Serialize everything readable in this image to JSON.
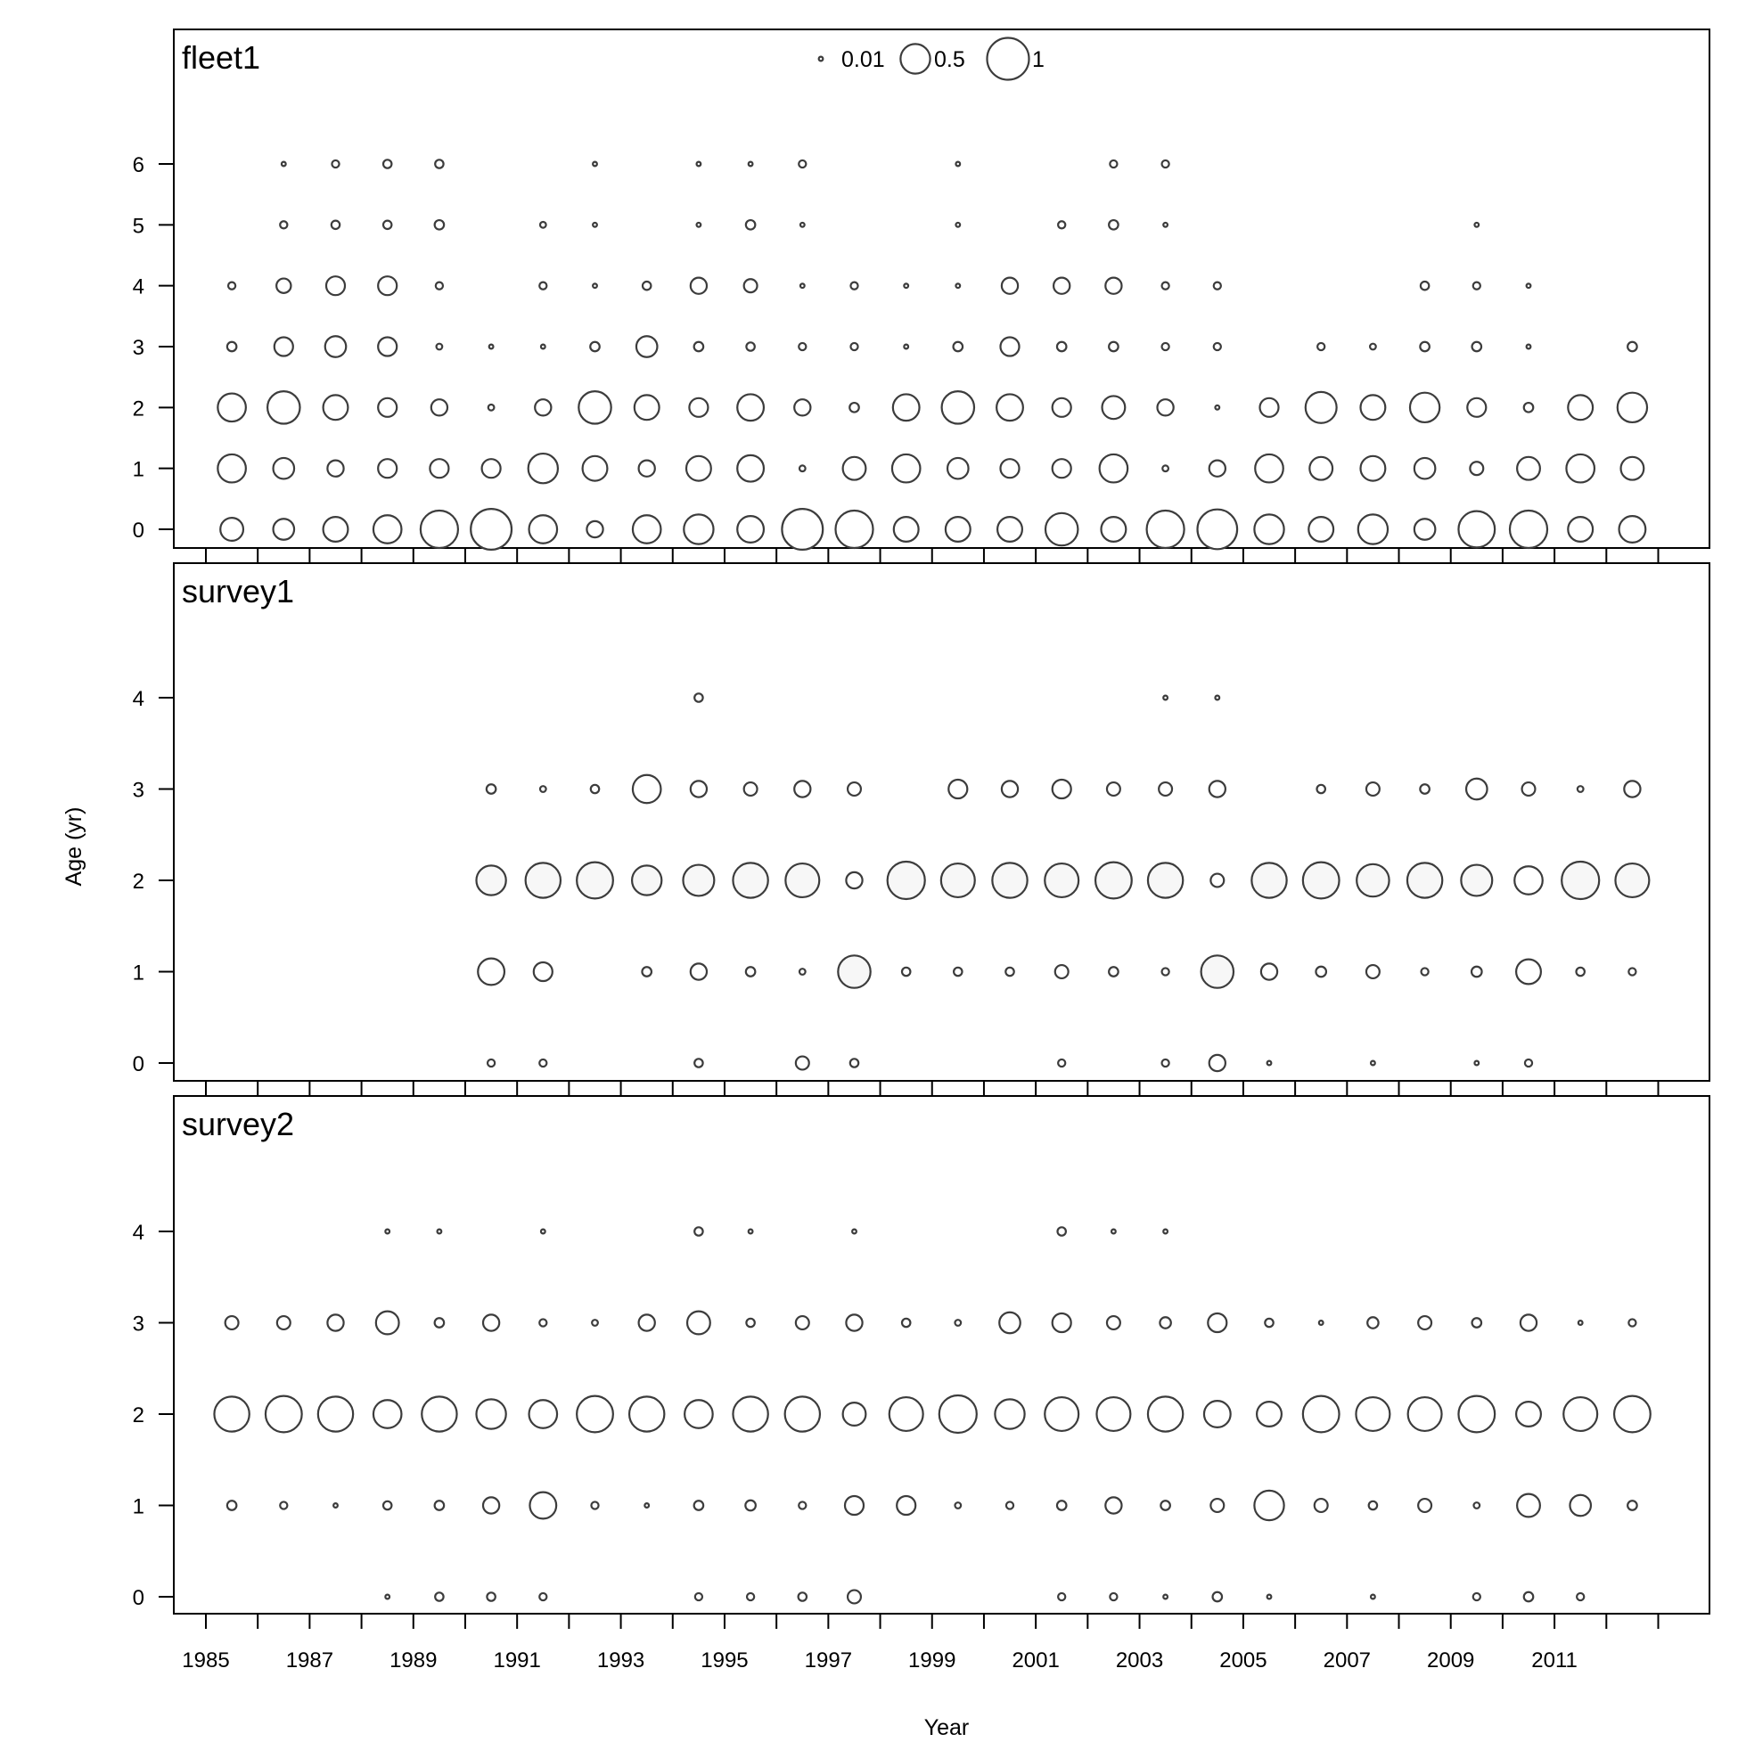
{
  "chart_data": {
    "type": "bubble",
    "xlabel": "Year",
    "ylabel": "Age (yr)",
    "x_tick_labels": [
      1985,
      1987,
      1989,
      1991,
      1993,
      1995,
      1997,
      1999,
      2001,
      2003,
      2005,
      2007,
      2009,
      2011
    ],
    "years": [
      1986,
      1987,
      1988,
      1989,
      1990,
      1991,
      1992,
      1993,
      1994,
      1995,
      1996,
      1997,
      1998,
      1999,
      2000,
      2001,
      2002,
      2003,
      2004,
      2005,
      2006,
      2007,
      2008,
      2009,
      2010,
      2011,
      2012,
      2013
    ],
    "xlim": [
      1984.5,
      2013.5
    ],
    "legend": {
      "entries": [
        {
          "label": "0.01",
          "size": 0.01
        },
        {
          "label": "0.5",
          "size": 0.5
        },
        {
          "label": "1",
          "size": 1
        }
      ],
      "position": "top-center"
    },
    "panels": [
      {
        "name": "fleet1",
        "ages": [
          0,
          1,
          2,
          3,
          4,
          5,
          6
        ],
        "values": {
          "0": [
            0.3,
            0.25,
            0.35,
            0.45,
            0.8,
            0.95,
            0.45,
            0.15,
            0.45,
            0.5,
            0.4,
            0.95,
            0.8,
            0.35,
            0.35,
            0.35,
            0.6,
            0.35,
            0.8,
            0.9,
            0.5,
            0.35,
            0.5,
            0.25,
            0.75,
            0.8,
            0.35,
            0.4
          ],
          "1": [
            0.45,
            0.25,
            0.15,
            0.2,
            0.2,
            0.2,
            0.5,
            0.35,
            0.15,
            0.35,
            0.4,
            0.02,
            0.3,
            0.45,
            0.25,
            0.2,
            0.2,
            0.45,
            0.02,
            0.15,
            0.45,
            0.3,
            0.35,
            0.25,
            0.1,
            0.3,
            0.45,
            0.3
          ],
          "2": [
            0.45,
            0.6,
            0.35,
            0.2,
            0.15,
            0.02,
            0.15,
            0.6,
            0.35,
            0.2,
            0.4,
            0.15,
            0.05,
            0.4,
            0.6,
            0.4,
            0.2,
            0.3,
            0.15,
            0.01,
            0.2,
            0.55,
            0.35,
            0.5,
            0.2,
            0.05,
            0.35,
            0.5
          ],
          "3": [
            0.05,
            0.2,
            0.25,
            0.2,
            0.02,
            0.01,
            0.01,
            0.05,
            0.25,
            0.05,
            0.04,
            0.03,
            0.03,
            0.01,
            0.05,
            0.2,
            0.05,
            0.05,
            0.03,
            0.03,
            0.0,
            0.03,
            0.02,
            0.05,
            0.05,
            0.01,
            0.0,
            0.05
          ],
          "4": [
            0.03,
            0.12,
            0.2,
            0.2,
            0.03,
            0.0,
            0.03,
            0.01,
            0.04,
            0.15,
            0.1,
            0.01,
            0.03,
            0.01,
            0.01,
            0.15,
            0.15,
            0.15,
            0.03,
            0.03,
            0.0,
            0.0,
            0.0,
            0.04,
            0.03,
            0.01,
            0.0,
            0.0
          ],
          "5": [
            0.0,
            0.03,
            0.04,
            0.04,
            0.05,
            0.0,
            0.02,
            0.01,
            0.0,
            0.01,
            0.05,
            0.01,
            0.0,
            0.0,
            0.01,
            0.0,
            0.03,
            0.05,
            0.01,
            0.0,
            0.0,
            0.0,
            0.0,
            0.0,
            0.01,
            0.0,
            0.0,
            0.0
          ],
          "6": [
            0.0,
            0.01,
            0.03,
            0.04,
            0.04,
            0.0,
            0.0,
            0.01,
            0.0,
            0.01,
            0.01,
            0.03,
            0.0,
            0.0,
            0.01,
            0.0,
            0.0,
            0.03,
            0.03,
            0.0,
            0.0,
            0.0,
            0.0,
            0.0,
            0.0,
            0.0,
            0.0,
            0.0
          ]
        }
      },
      {
        "name": "survey1",
        "ages": [
          0,
          1,
          2,
          3,
          4
        ],
        "values": {
          "0": [
            0.0,
            0.0,
            0.0,
            0.0,
            0.0,
            0.03,
            0.03,
            0.0,
            0.0,
            0.04,
            0.0,
            0.1,
            0.04,
            0.0,
            0.0,
            0.0,
            0.03,
            0.0,
            0.03,
            0.15,
            0.01,
            0.0,
            0.01,
            0.0,
            0.01,
            0.03,
            0.0,
            0.0
          ],
          "1": [
            0.0,
            0.0,
            0.0,
            0.0,
            0.0,
            0.4,
            0.2,
            0.0,
            0.05,
            0.15,
            0.05,
            0.02,
            0.6,
            0.04,
            0.04,
            0.04,
            0.1,
            0.05,
            0.03,
            0.6,
            0.15,
            0.06,
            0.1,
            0.03,
            0.06,
            0.35,
            0.04,
            0.03
          ],
          "2": [
            0.0,
            0.0,
            0.0,
            0.0,
            0.0,
            0.5,
            0.7,
            0.75,
            0.5,
            0.55,
            0.7,
            0.65,
            0.15,
            0.8,
            0.65,
            0.7,
            0.65,
            0.75,
            0.7,
            0.1,
            0.7,
            0.75,
            0.6,
            0.7,
            0.55,
            0.45,
            0.8,
            0.65
          ],
          "3": [
            0.0,
            0.0,
            0.0,
            0.0,
            0.0,
            0.05,
            0.02,
            0.04,
            0.45,
            0.15,
            0.1,
            0.15,
            0.1,
            0.0,
            0.2,
            0.15,
            0.2,
            0.1,
            0.1,
            0.15,
            0.0,
            0.04,
            0.1,
            0.05,
            0.25,
            0.1,
            0.02,
            0.15
          ],
          "4": [
            0.0,
            0.0,
            0.0,
            0.0,
            0.0,
            0.0,
            0.0,
            0.0,
            0.0,
            0.04,
            0.0,
            0.0,
            0.0,
            0.0,
            0.0,
            0.0,
            0.0,
            0.0,
            0.01,
            0.01,
            0.0,
            0.0,
            0.0,
            0.0,
            0.0,
            0.0,
            0.0,
            0.0
          ]
        }
      },
      {
        "name": "survey2",
        "ages": [
          0,
          1,
          2,
          3,
          4
        ],
        "values": {
          "0": [
            0.0,
            0.0,
            0.0,
            0.01,
            0.04,
            0.04,
            0.03,
            0.0,
            0.0,
            0.03,
            0.03,
            0.04,
            0.1,
            0.0,
            0.0,
            0.0,
            0.03,
            0.03,
            0.01,
            0.05,
            0.01,
            0.0,
            0.01,
            0.0,
            0.03,
            0.05,
            0.03,
            0.0
          ],
          "1": [
            0.05,
            0.03,
            0.01,
            0.04,
            0.05,
            0.15,
            0.4,
            0.03,
            0.01,
            0.05,
            0.06,
            0.03,
            0.2,
            0.2,
            0.02,
            0.03,
            0.05,
            0.15,
            0.05,
            0.1,
            0.5,
            0.1,
            0.04,
            0.1,
            0.02,
            0.3,
            0.25,
            0.05
          ],
          "2": [
            0.7,
            0.75,
            0.7,
            0.45,
            0.7,
            0.5,
            0.45,
            0.75,
            0.7,
            0.45,
            0.7,
            0.7,
            0.3,
            0.65,
            0.8,
            0.5,
            0.65,
            0.65,
            0.7,
            0.4,
            0.35,
            0.75,
            0.65,
            0.65,
            0.75,
            0.35,
            0.65,
            0.75
          ],
          "3": [
            0.1,
            0.1,
            0.15,
            0.3,
            0.05,
            0.15,
            0.03,
            0.02,
            0.15,
            0.3,
            0.04,
            0.1,
            0.15,
            0.04,
            0.02,
            0.25,
            0.2,
            0.1,
            0.07,
            0.2,
            0.04,
            0.01,
            0.07,
            0.1,
            0.05,
            0.15,
            0.01,
            0.03
          ],
          "4": [
            0.0,
            0.0,
            0.0,
            0.01,
            0.01,
            0.0,
            0.01,
            0.0,
            0.0,
            0.04,
            0.01,
            0.0,
            0.01,
            0.0,
            0.0,
            0.0,
            0.04,
            0.01,
            0.01,
            0.0,
            0.0,
            0.0,
            0.0,
            0.0,
            0.0,
            0.0,
            0.0,
            0.0
          ]
        }
      }
    ]
  }
}
